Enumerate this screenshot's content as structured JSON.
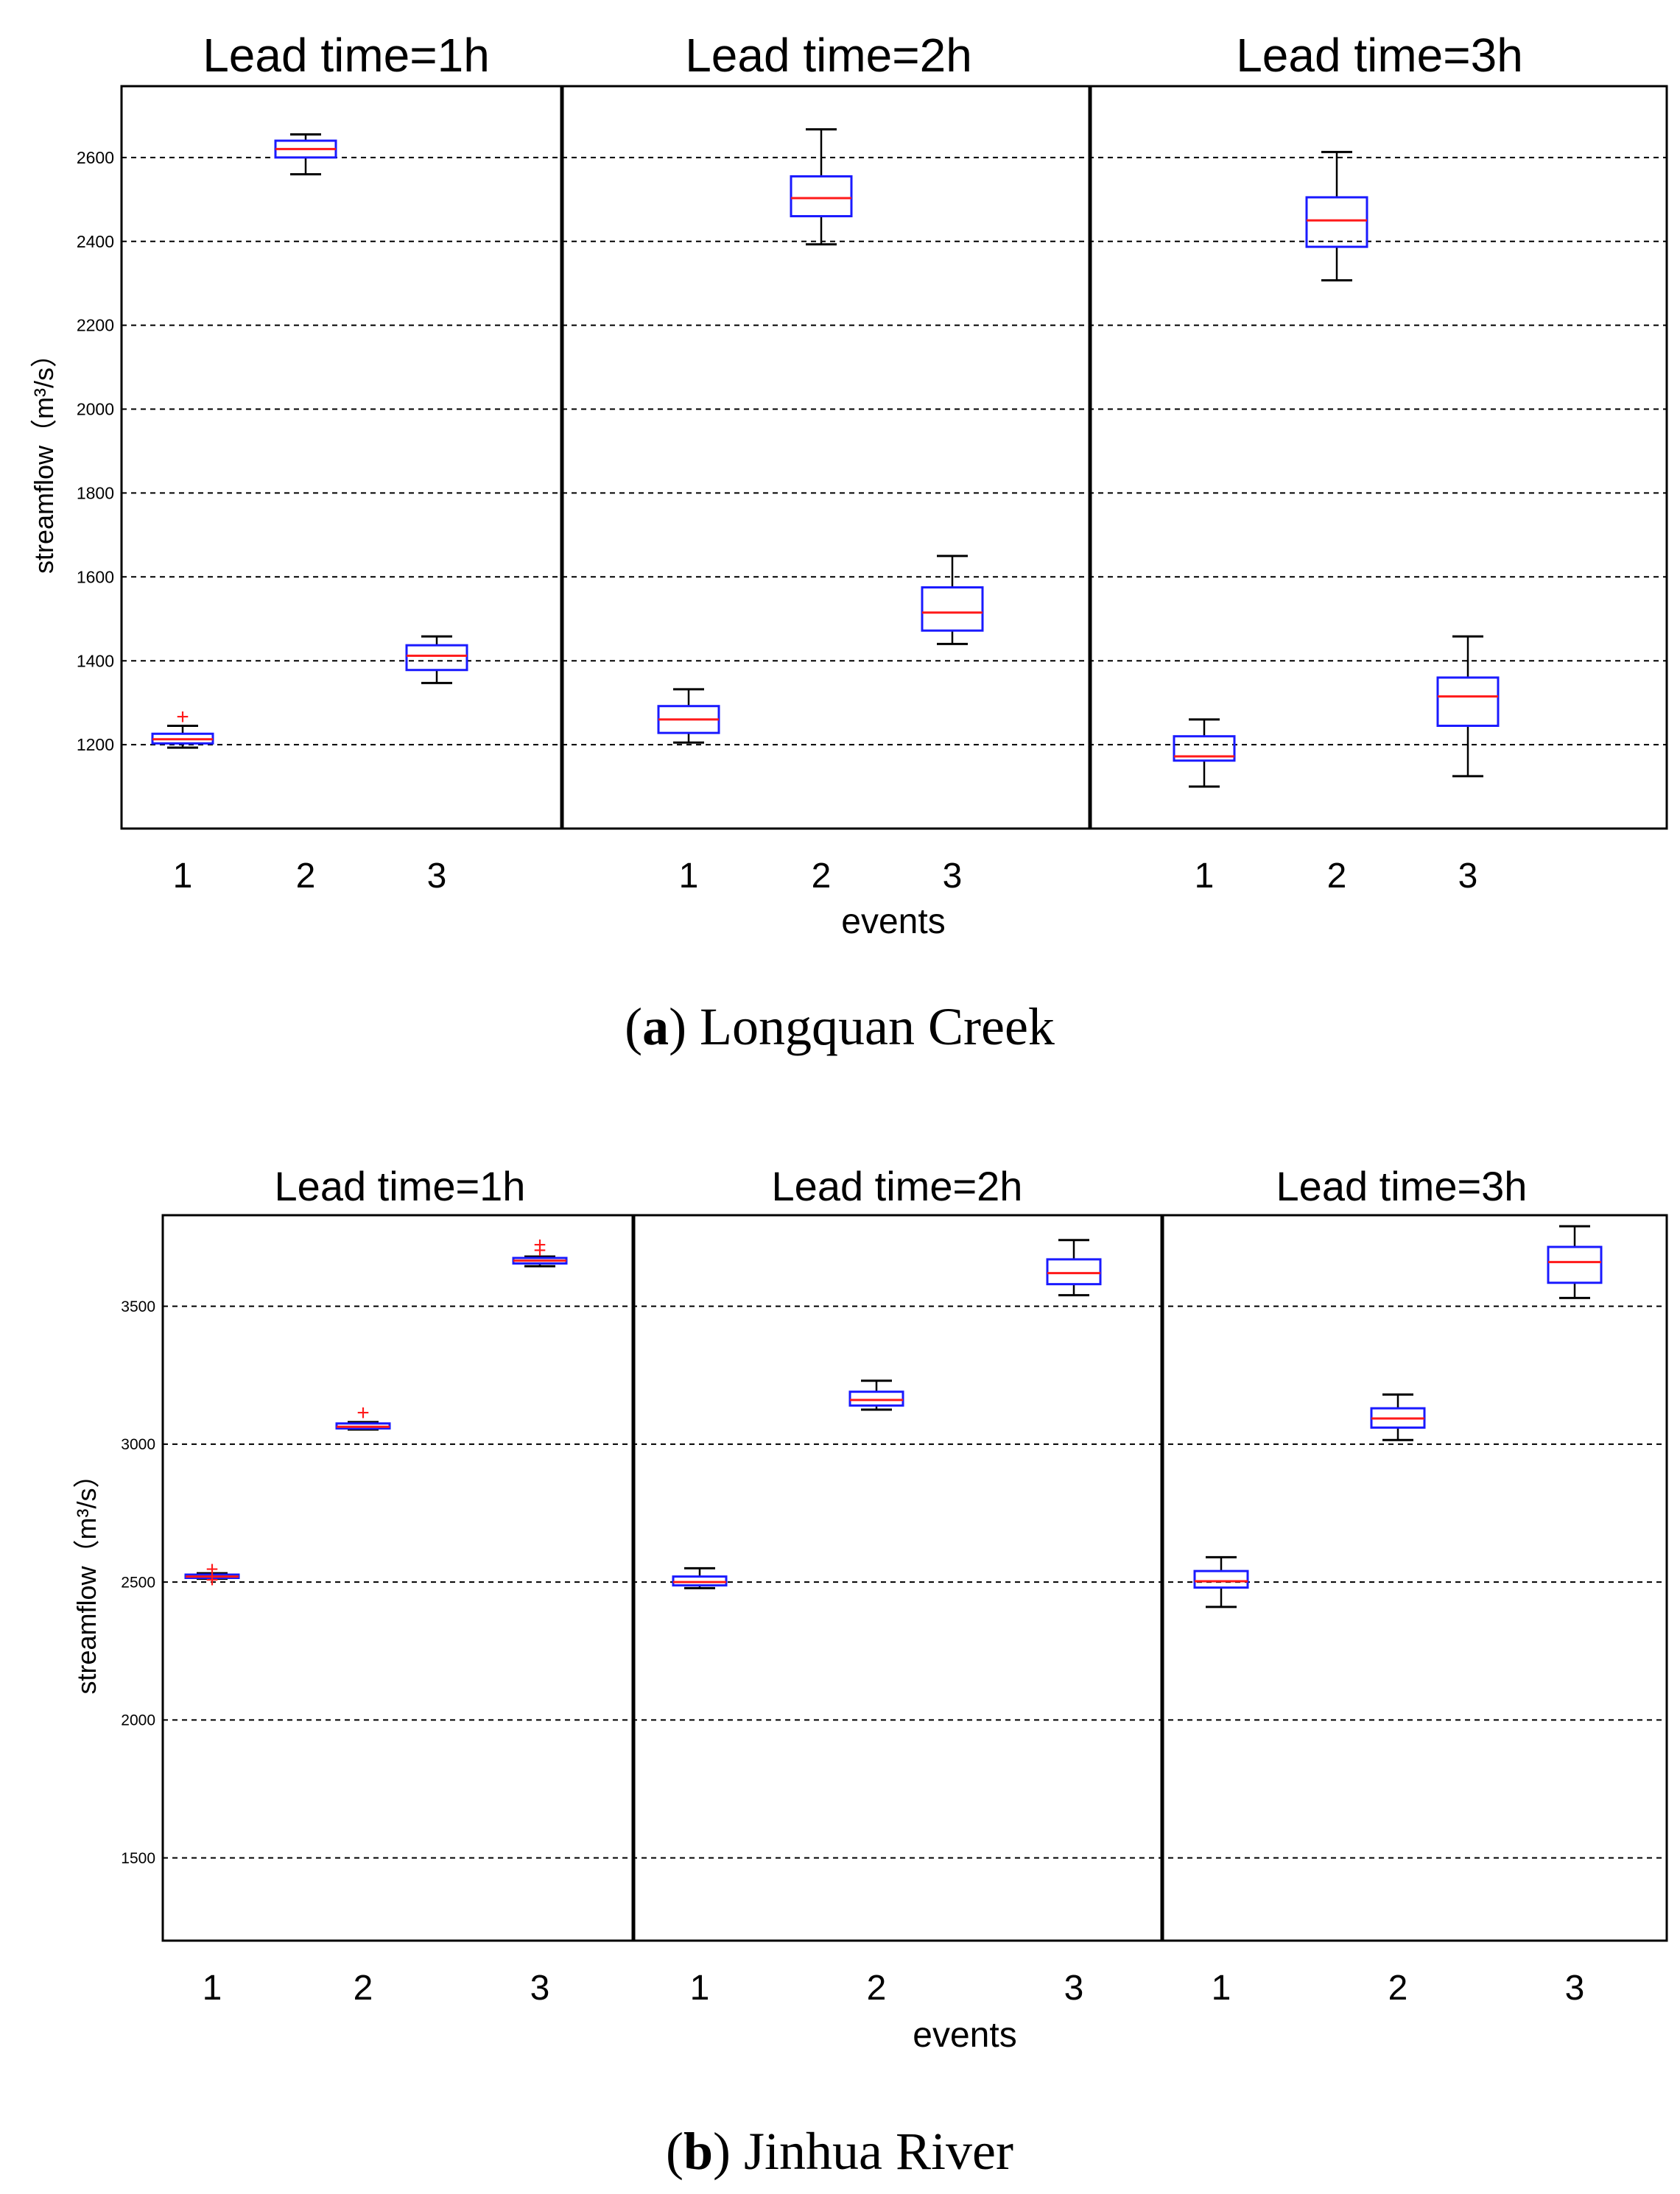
{
  "chart_data": [
    {
      "type": "box",
      "caption": {
        "prefix": "(",
        "bold": "a",
        "suffix": ") Longquan Creek"
      },
      "ylabel": "streamflow（m³/s）",
      "xlabel": "events",
      "ylim": [
        1000,
        2770
      ],
      "yticks": [
        1200,
        1400,
        1600,
        1800,
        2000,
        2200,
        2400,
        2600
      ],
      "grid": true,
      "panels": [
        {
          "title": "Lead time=1h",
          "boxes": [
            {
              "event": "1",
              "min": 1193,
              "q1": 1203,
              "median": 1213,
              "q3": 1226,
              "max": 1245,
              "outliers": [
                1265
              ]
            },
            {
              "event": "2",
              "min": 2560,
              "q1": 2600,
              "median": 2620,
              "q3": 2640,
              "max": 2655,
              "outliers": []
            },
            {
              "event": "3",
              "min": 1347,
              "q1": 1378,
              "median": 1412,
              "q3": 1437,
              "max": 1458,
              "outliers": []
            }
          ]
        },
        {
          "title": "Lead time=2h",
          "boxes": [
            {
              "event": "1",
              "min": 1205,
              "q1": 1228,
              "median": 1260,
              "q3": 1292,
              "max": 1332,
              "outliers": []
            },
            {
              "event": "2",
              "min": 2393,
              "q1": 2460,
              "median": 2503,
              "q3": 2555,
              "max": 2667,
              "outliers": []
            },
            {
              "event": "3",
              "min": 1440,
              "q1": 1472,
              "median": 1515,
              "q3": 1575,
              "max": 1650,
              "outliers": []
            }
          ]
        },
        {
          "title": "Lead time=3h",
          "boxes": [
            {
              "event": "1",
              "min": 1100,
              "q1": 1162,
              "median": 1172,
              "q3": 1220,
              "max": 1260,
              "outliers": []
            },
            {
              "event": "2",
              "min": 2307,
              "q1": 2387,
              "median": 2450,
              "q3": 2505,
              "max": 2613,
              "outliers": []
            },
            {
              "event": "3",
              "min": 1125,
              "q1": 1245,
              "median": 1315,
              "q3": 1360,
              "max": 1458,
              "outliers": []
            }
          ]
        }
      ]
    },
    {
      "type": "box",
      "caption": {
        "prefix": "(",
        "bold": "b",
        "suffix": ") Jinhua River"
      },
      "ylabel": "streamflow（m³/s）",
      "xlabel": "events",
      "ylim": [
        1200,
        3830
      ],
      "yticks": [
        1500,
        2000,
        2500,
        3000,
        3500
      ],
      "grid": true,
      "panels": [
        {
          "title": "Lead time=1h",
          "boxes": [
            {
              "event": "1",
              "min": 2512,
              "q1": 2515,
              "median": 2520,
              "q3": 2527,
              "max": 2532,
              "outliers": [
                2505,
                2545
              ]
            },
            {
              "event": "2",
              "min": 3053,
              "q1": 3057,
              "median": 3063,
              "q3": 3075,
              "max": 3080,
              "outliers": [
                3112
              ]
            },
            {
              "event": "3",
              "min": 3645,
              "q1": 3655,
              "median": 3665,
              "q3": 3675,
              "max": 3680,
              "outliers": [
                3700,
                3720
              ]
            }
          ]
        },
        {
          "title": "Lead time=2h",
          "boxes": [
            {
              "event": "1",
              "min": 2478,
              "q1": 2488,
              "median": 2500,
              "q3": 2520,
              "max": 2550,
              "outliers": []
            },
            {
              "event": "2",
              "min": 3125,
              "q1": 3140,
              "median": 3160,
              "q3": 3190,
              "max": 3230,
              "outliers": []
            },
            {
              "event": "3",
              "min": 3540,
              "q1": 3580,
              "median": 3620,
              "q3": 3670,
              "max": 3740,
              "outliers": []
            }
          ]
        },
        {
          "title": "Lead time=3h",
          "boxes": [
            {
              "event": "1",
              "min": 2410,
              "q1": 2480,
              "median": 2503,
              "q3": 2540,
              "max": 2590,
              "outliers": []
            },
            {
              "event": "2",
              "min": 3015,
              "q1": 3060,
              "median": 3093,
              "q3": 3130,
              "max": 3180,
              "outliers": []
            },
            {
              "event": "3",
              "min": 3530,
              "q1": 3585,
              "median": 3660,
              "q3": 3715,
              "max": 3790,
              "outliers": []
            }
          ]
        }
      ]
    }
  ]
}
